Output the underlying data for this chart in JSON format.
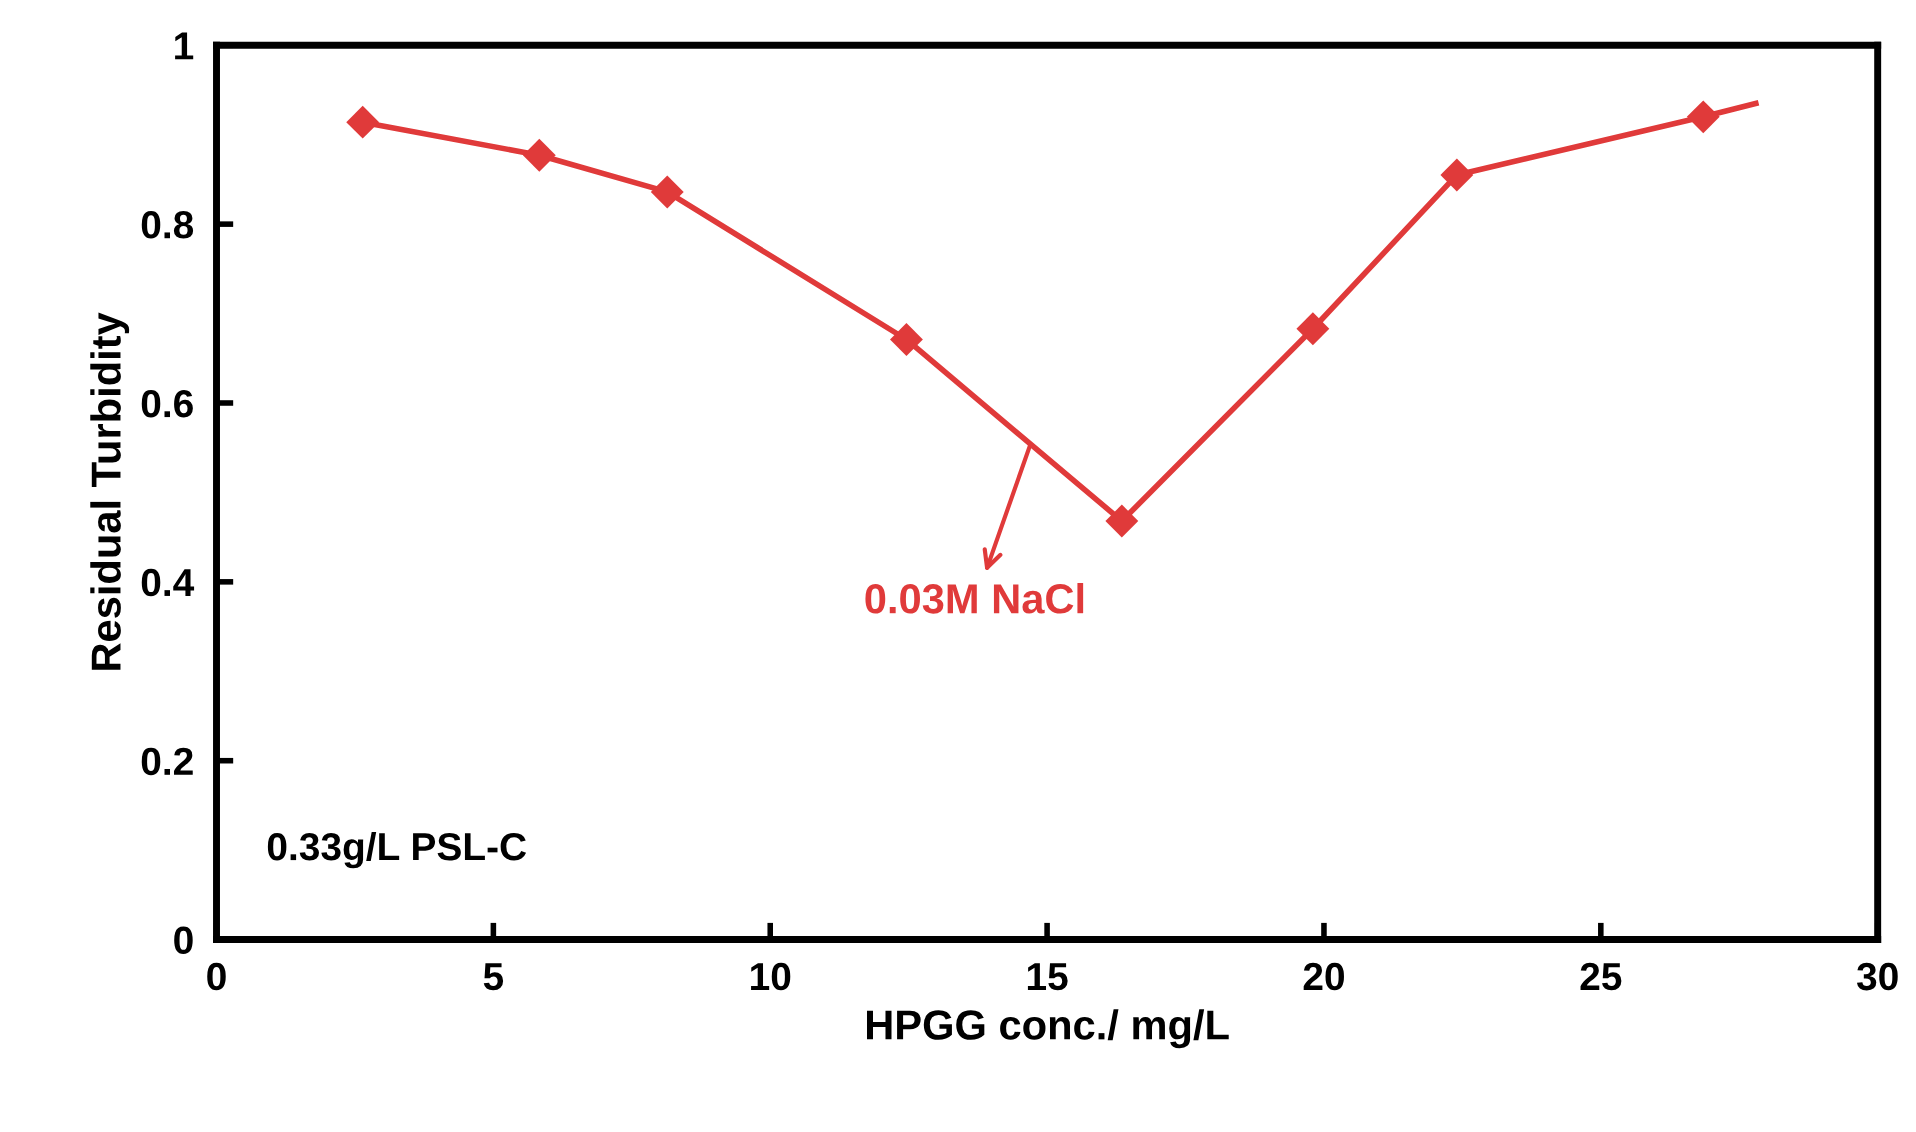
{
  "chart_data": {
    "type": "scatter",
    "xlabel": "HPGG conc./ mg/L",
    "ylabel": "Residual Turbidity",
    "xlim": [
      0,
      30
    ],
    "xticks": [
      0,
      5,
      10,
      15,
      20,
      25,
      30
    ],
    "ylim": [
      0,
      1
    ],
    "yticks": [
      0,
      0.2,
      0.4,
      0.6,
      0.8,
      1
    ],
    "grid": false,
    "legend": false,
    "series": [
      {
        "color": "#e03a3a",
        "marker": "diamond",
        "x": [
          2.64,
          5.83,
          8.14,
          12.46,
          16.35,
          19.8,
          22.4,
          26.85
        ],
        "values": [
          0.914,
          0.877,
          0.836,
          0.671,
          0.468,
          0.683,
          0.855,
          0.92
        ]
      },
      {
        "type": "line",
        "color": "#e03a3a",
        "line_style": "solid",
        "x": [
          2.64,
          5.83,
          8.14,
          12.46,
          16.35,
          19.8,
          22.4,
          26.85,
          27.8
        ],
        "values": [
          0.914,
          0.877,
          0.836,
          0.671,
          0.468,
          0.683,
          0.855,
          0.92,
          0.935
        ]
      }
    ],
    "annotations": [
      {
        "text": "0.03M NaCl",
        "x": 14.7,
        "y": 0.554
      },
      "0.33g/L PSL-C"
    ]
  }
}
